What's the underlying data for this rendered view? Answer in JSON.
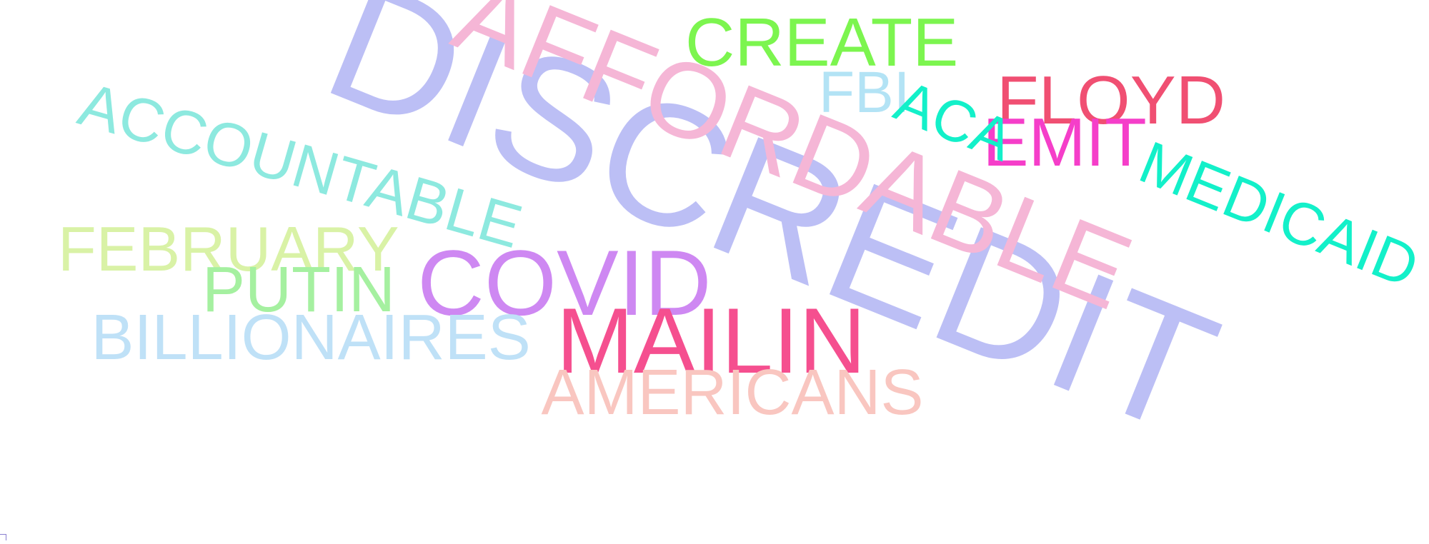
{
  "words": [
    {
      "id": "discredit",
      "text": "DISCREDIT",
      "color": "#bcbff5",
      "rotate": 22
    },
    {
      "id": "affordable",
      "text": "AFFORDABLE",
      "color": "#f5b6d6",
      "rotate": 22
    },
    {
      "id": "create",
      "text": "CREATE",
      "color": "#7cf54f",
      "rotate": 0
    },
    {
      "id": "fbi",
      "text": "FBI",
      "color": "#b3e3f5",
      "rotate": 0
    },
    {
      "id": "floyd",
      "text": "FLOYD",
      "color": "#f04f72",
      "rotate": 0
    },
    {
      "id": "emit",
      "text": "EMIT",
      "color": "#f53ec9",
      "rotate": 0
    },
    {
      "id": "aca",
      "text": "ACA",
      "color": "#13f0c9",
      "rotate": 22
    },
    {
      "id": "medicaid",
      "text": "MEDICAID",
      "color": "#13f0c9",
      "rotate": 22
    },
    {
      "id": "accountable",
      "text": "ACCOUNTABLE",
      "color": "#8de9df",
      "rotate": 16
    },
    {
      "id": "february",
      "text": "FEBRUARY",
      "color": "#d9f2a6",
      "rotate": 0
    },
    {
      "id": "putin",
      "text": "PUTIN",
      "color": "#a5f0a0",
      "rotate": 0
    },
    {
      "id": "covid",
      "text": "COVID",
      "color": "#ce88f2",
      "rotate": 0
    },
    {
      "id": "billionaires",
      "text": "BILLIONAIRES",
      "color": "#bfe1f7",
      "rotate": 0
    },
    {
      "id": "mailin",
      "text": "MAILIN",
      "color": "#f54f8f",
      "rotate": 0
    },
    {
      "id": "americans",
      "text": "AMERICANS",
      "color": "#f9c6c0",
      "rotate": 0
    }
  ]
}
